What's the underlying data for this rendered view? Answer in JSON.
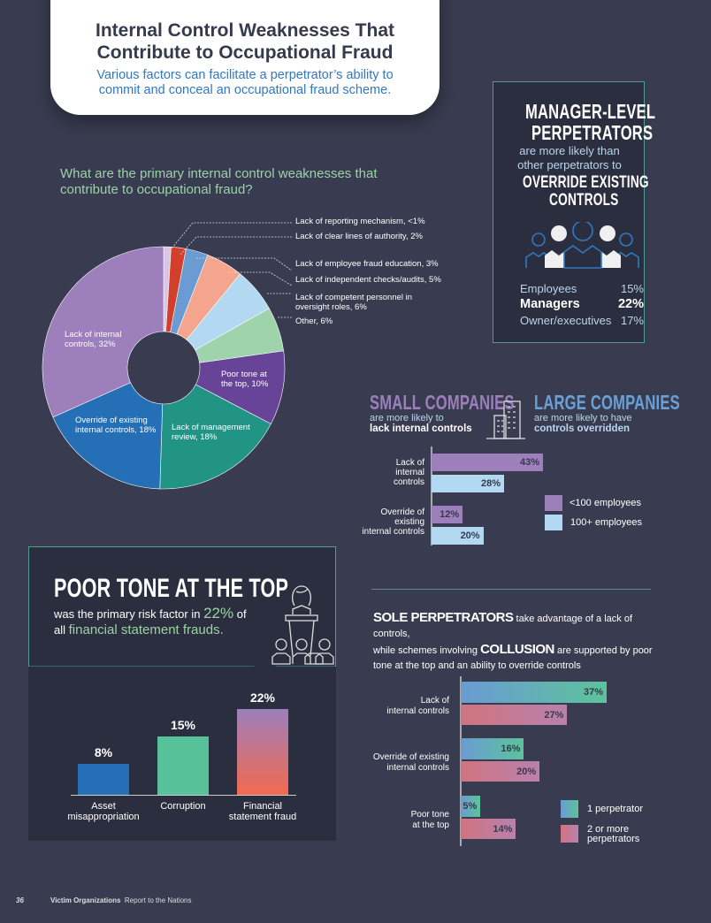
{
  "header": {
    "title_line1": "Internal Control Weaknesses That",
    "title_line2": "Contribute to Occupational Fraud",
    "subtitle_line1": "Various factors can facilitate a perpetrator’s ability to",
    "subtitle_line2": "commit and conceal an occupational fraud scheme."
  },
  "colors": {
    "background": "#393c50",
    "panel": "#2b2e3e",
    "accent_green": "#9ad3a6",
    "accent_purple": "#9c7fbb",
    "accent_blue": "#6aa0d8"
  },
  "chart_data": [
    {
      "type": "pie",
      "title": "What are the primary internal control weaknesses that contribute to occupational fraud?",
      "slices": [
        {
          "label": "Lack of reporting mechanism, <1%",
          "value": 1,
          "color": "#d9c6e6"
        },
        {
          "label": "Lack of clear lines of authority, 2%",
          "value": 2,
          "color": "#d2402b"
        },
        {
          "label": "Lack of employee fraud education, 3%",
          "value": 3,
          "color": "#6a9bd3"
        },
        {
          "label": "Lack of independent checks/audits, 5%",
          "value": 5,
          "color": "#f5a58d"
        },
        {
          "label": "Lack of competent personnel in oversight roles, 6%",
          "value": 6,
          "color": "#b3d8f1"
        },
        {
          "label": "Other, 6%",
          "value": 6,
          "color": "#9fd3ab"
        },
        {
          "label": "Poor tone at the top, 10%",
          "value": 10,
          "color": "#674497"
        },
        {
          "label": "Lack of management review, 18%",
          "value": 18,
          "color": "#229486"
        },
        {
          "label": "Override of existing internal controls, 18%",
          "value": 18,
          "color": "#246fb5"
        },
        {
          "label": "Lack of internal controls, 32%",
          "value": 32,
          "color": "#9c7fbb"
        }
      ]
    },
    {
      "type": "bar",
      "orientation": "horizontal",
      "categories": [
        "Lack of internal controls",
        "Override of existing internal controls"
      ],
      "series": [
        {
          "name": "<100 employees",
          "values": [
            43,
            12
          ],
          "color": "#9c7fbb"
        },
        {
          "name": "100+ employees",
          "values": [
            28,
            20
          ],
          "color": "#b3d8f1"
        }
      ],
      "value_labels": [
        [
          "43%",
          "12%"
        ],
        [
          "28%",
          "20%"
        ]
      ]
    },
    {
      "type": "bar",
      "categories": [
        "Asset misappropriation",
        "Corruption",
        "Financial statement fraud"
      ],
      "values": [
        8,
        15,
        22
      ],
      "value_labels": [
        "8%",
        "15%",
        "22%"
      ],
      "colors": [
        "#246fb5",
        "#57c29a",
        "#f26a4f"
      ]
    },
    {
      "type": "bar",
      "orientation": "horizontal",
      "categories": [
        "Lack of internal controls",
        "Override of existing internal controls",
        "Poor tone at the top"
      ],
      "series": [
        {
          "name": "1 perpetrator",
          "values": [
            37,
            16,
            5
          ],
          "color": "#5cc39b"
        },
        {
          "name": "2 or more perpetrators",
          "values": [
            27,
            20,
            14
          ],
          "color": "#c97691"
        }
      ],
      "value_labels": [
        [
          "37%",
          "16%",
          "5%"
        ],
        [
          "27%",
          "20%",
          "14%"
        ]
      ]
    }
  ],
  "pie_labels": {
    "l0": "Lack of reporting mechanism, <1%",
    "l1": "Lack of clear lines of authority, 2%",
    "l2": "Lack of employee fraud education, 3%",
    "l3": "Lack of independent checks/audits, 5%",
    "l4a": "Lack of competent personnel in",
    "l4b": "oversight roles, 6%",
    "l5": "Other, 6%",
    "l6a": "Poor tone at",
    "l6b": "the top, 10%",
    "l7a": "Lack of management",
    "l7b": "review, 18%",
    "l8a": "Override of existing",
    "l8b": "internal controls, 18%",
    "l9a": "Lack of internal",
    "l9b": "controls, 32%"
  },
  "manager": {
    "t1": "MANAGER-LEVEL",
    "t2": "PERPETRATORS",
    "s1": "are more likely than",
    "s2": "other perpetrators to",
    "t3": "OVERRIDE EXISTING",
    "t4": "CONTROLS",
    "rows": [
      {
        "label": "Employees",
        "value": "15%"
      },
      {
        "label": "Managers",
        "value": "22%"
      },
      {
        "label": "Owner/executives",
        "value": "17%"
      }
    ]
  },
  "company": {
    "small_title": "SMALL COMPANIES",
    "small_s1": "are more likely to",
    "small_s2": "lack internal controls",
    "large_title": "LARGE COMPANIES",
    "large_s1": "are more likely to have",
    "large_s2": "controls overridden",
    "cat1a": "Lack of",
    "cat1b": "internal",
    "cat1c": "controls",
    "cat2a": "Override of",
    "cat2b": "existing",
    "cat2c": "internal controls"
  },
  "tone": {
    "title": "POOR TONE AT THE TOP",
    "s1": "was the primary risk factor in",
    "pct": "22%",
    "s2": "of",
    "s3": "all",
    "s4": "financial statement frauds.",
    "cat1a": "Asset",
    "cat1b": "misappropriation",
    "cat2a": "Corruption",
    "cat3a": "Financial",
    "cat3b": "statement fraud"
  },
  "sole": {
    "h1": "SOLE PERPETRATORS",
    "t1": " take advantage of a lack of controls,",
    "t2": "while schemes involving ",
    "h2": "COLLUSION",
    "t3": " are supported by poor",
    "t4": "tone at the top and an ability to override controls",
    "c1a": "Lack of",
    "c1b": "internal controls",
    "c2a": "Override of existing",
    "c2b": "internal controls",
    "c3a": "Poor tone",
    "c3b": "at the top",
    "leg2a": "2 or more",
    "leg2b": "perpetrators"
  },
  "footer": {
    "page": "36",
    "section": "Victim Organizations",
    "report": "Report to the Nations"
  }
}
